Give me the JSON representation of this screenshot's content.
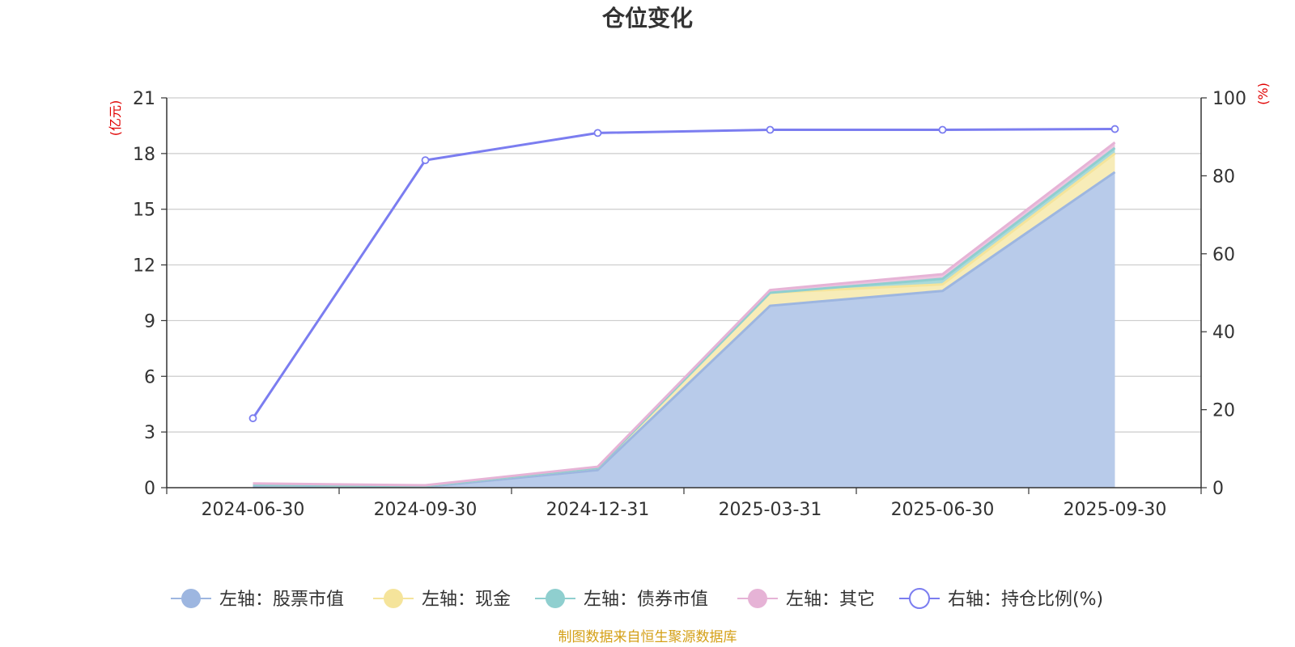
{
  "chart_data": {
    "type": "area",
    "title": "仓位变化",
    "categories": [
      "2024-06-30",
      "2024-09-30",
      "2024-12-31",
      "2025-03-31",
      "2025-06-30",
      "2025-09-30"
    ],
    "left_axis": {
      "unit_label": "(亿元)",
      "ylim": [
        0,
        21
      ],
      "ticks": [
        "0",
        "3",
        "6",
        "9",
        "12",
        "15",
        "18",
        "21"
      ]
    },
    "right_axis": {
      "unit_label": "(%)",
      "ylim": [
        0,
        100
      ],
      "ticks": [
        "0",
        "20",
        "40",
        "60",
        "80",
        "100"
      ]
    },
    "stacked_series": [
      {
        "name": "左轴：股票市值",
        "color": "#9db6e0",
        "fill": "#b8cbea",
        "values": [
          0.03,
          0.05,
          0.95,
          9.8,
          10.6,
          17.0
        ]
      },
      {
        "name": "左轴：现金",
        "color": "#f5e49b",
        "fill": "#f7ecb8",
        "values": [
          0.12,
          0.04,
          0.12,
          0.7,
          0.35,
          1.0
        ]
      },
      {
        "name": "左轴：债券市值",
        "color": "#8fcfcf",
        "fill": "#a9dada",
        "values": [
          0.0,
          0.0,
          0.0,
          0.0,
          0.3,
          0.3
        ]
      },
      {
        "name": "左轴：其它",
        "color": "#e6b3d6",
        "fill": "#ecc5e0",
        "values": [
          0.08,
          0.04,
          0.06,
          0.15,
          0.25,
          0.3
        ]
      }
    ],
    "line_series": {
      "name": "右轴：持仓比例(%)",
      "color": "#7b7df0",
      "axis": "right",
      "values": [
        17.8,
        84.0,
        91.0,
        91.8,
        91.8,
        92.0
      ]
    },
    "legend_placement": "bottom-center",
    "grid": true
  },
  "footer": {
    "source": "制图数据来自恒生聚源数据库"
  }
}
